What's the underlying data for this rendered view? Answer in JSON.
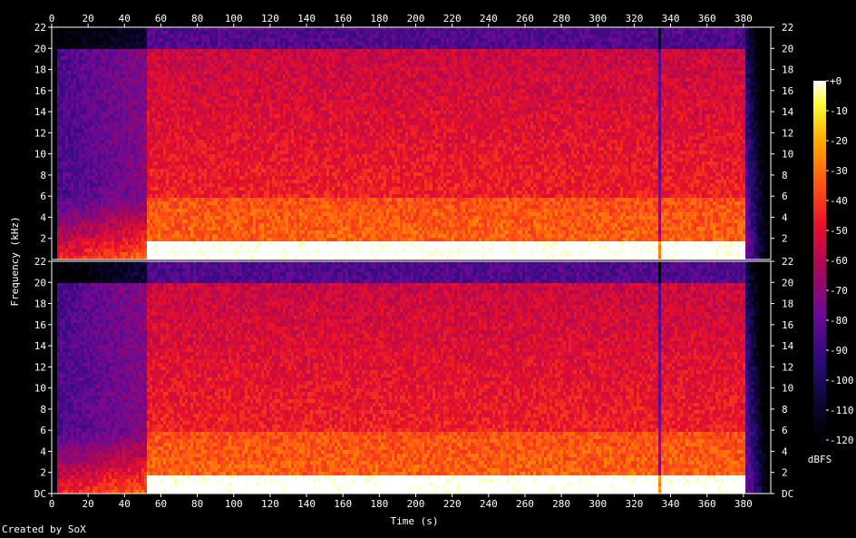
{
  "chart_data": {
    "type": "heatmap",
    "title": "",
    "xlabel": "Time (s)",
    "ylabel": "Frequency (kHz)",
    "x_ticks": [
      "0",
      "20",
      "40",
      "60",
      "80",
      "100",
      "120",
      "140",
      "160",
      "180",
      "200",
      "220",
      "240",
      "260",
      "280",
      "300",
      "320",
      "340",
      "360",
      "380"
    ],
    "xlim": [
      0,
      395
    ],
    "channels": [
      {
        "y_ticks": [
          "2",
          "4",
          "6",
          "8",
          "10",
          "12",
          "14",
          "16",
          "18",
          "20",
          "22"
        ],
        "y_tick_values": [
          2,
          4,
          6,
          8,
          10,
          12,
          14,
          16,
          18,
          20,
          22
        ]
      },
      {
        "y_ticks": [
          "DC",
          "2",
          "4",
          "6",
          "8",
          "10",
          "12",
          "14",
          "16",
          "18",
          "20",
          "22"
        ],
        "y_tick_values": [
          0,
          2,
          4,
          6,
          8,
          10,
          12,
          14,
          16,
          18,
          20,
          22
        ]
      }
    ],
    "ylim": [
      0,
      22
    ],
    "colorbar": {
      "label": "dBFS",
      "ticks": [
        "+0",
        "-10",
        "-20",
        "-30",
        "-40",
        "-50",
        "-60",
        "-70",
        "-80",
        "-90",
        "-100",
        "-110",
        "-120"
      ],
      "range": [
        -120,
        0
      ]
    },
    "colors": {
      "background": "#000000",
      "axis": "#ffffff"
    }
  },
  "footer": {
    "credit": "Created by SoX"
  }
}
